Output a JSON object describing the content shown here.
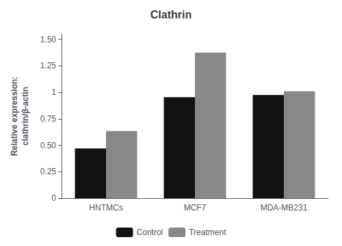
{
  "chart_data": {
    "type": "bar",
    "title": "Clathrin",
    "ylabel": "Relative expression:\nclathrin/β-actin",
    "categories": [
      "HNTMCs",
      "MCF7",
      "MDA-MB231"
    ],
    "series": [
      {
        "name": "Control",
        "color": "#111111",
        "values": [
          0.47,
          0.955,
          0.975
        ]
      },
      {
        "name": "Treatment",
        "color": "#888888",
        "values": [
          0.635,
          1.375,
          1.01
        ]
      }
    ],
    "ylim": [
      0,
      1.55
    ],
    "yticks": [
      0,
      0.25,
      {
        "value": 0.5,
        "label": "0.50"
      },
      0.75,
      1,
      1.25,
      {
        "value": 1.5,
        "label": "1.50"
      }
    ],
    "grid": false,
    "legend": "bottom"
  }
}
